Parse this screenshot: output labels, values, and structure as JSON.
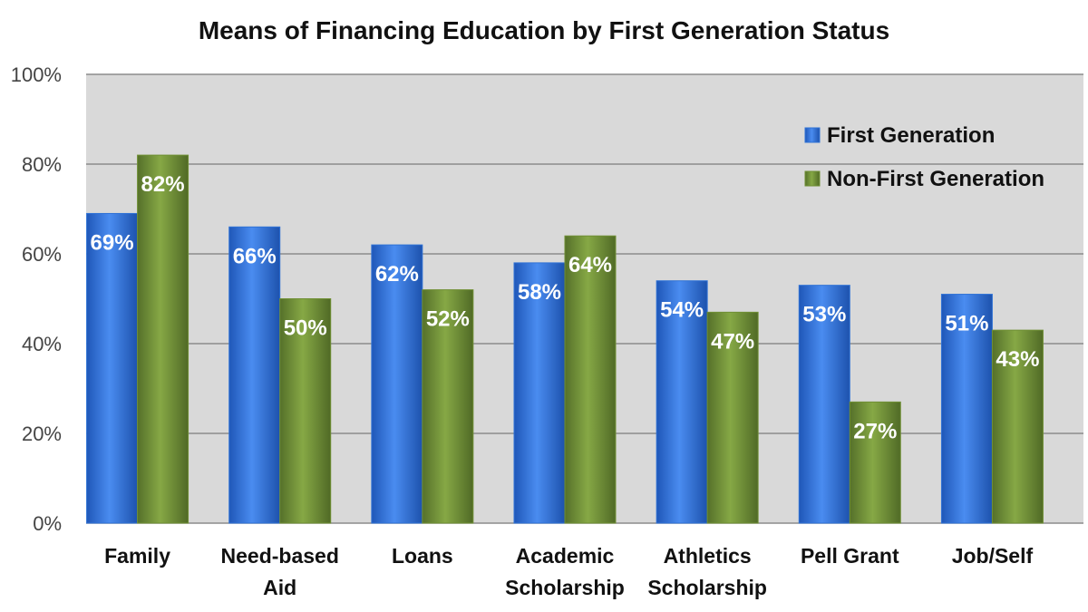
{
  "chart_data": {
    "type": "bar",
    "title": "Means of Financing Education by First Generation Status",
    "categories": [
      [
        "Family"
      ],
      [
        "Need-based",
        "Aid"
      ],
      [
        "Loans"
      ],
      [
        "Academic",
        "Scholarship"
      ],
      [
        "Athletics",
        "Scholarship"
      ],
      [
        "Pell Grant"
      ],
      [
        "Job/Self"
      ]
    ],
    "series": [
      {
        "name": "First Generation",
        "color": "#2f72d6",
        "values": [
          69,
          66,
          62,
          58,
          54,
          53,
          51
        ],
        "labels": [
          "69%",
          "66%",
          "62%",
          "58%",
          "54%",
          "53%",
          "51%"
        ]
      },
      {
        "name": "Non-First Generation",
        "color": "#6f8f34",
        "values": [
          82,
          50,
          52,
          64,
          47,
          27,
          43
        ],
        "labels": [
          "82%",
          "50%",
          "52%",
          "64%",
          "47%",
          "27%",
          "43%"
        ]
      }
    ],
    "ylim": [
      0,
      100
    ],
    "yticks": [
      "0%",
      "20%",
      "40%",
      "60%",
      "80%",
      "100%"
    ],
    "ytick_values": [
      0,
      20,
      40,
      60,
      80,
      100
    ],
    "grid": true,
    "legend_position": "top-right",
    "plot_background": "#d9d9d9"
  }
}
